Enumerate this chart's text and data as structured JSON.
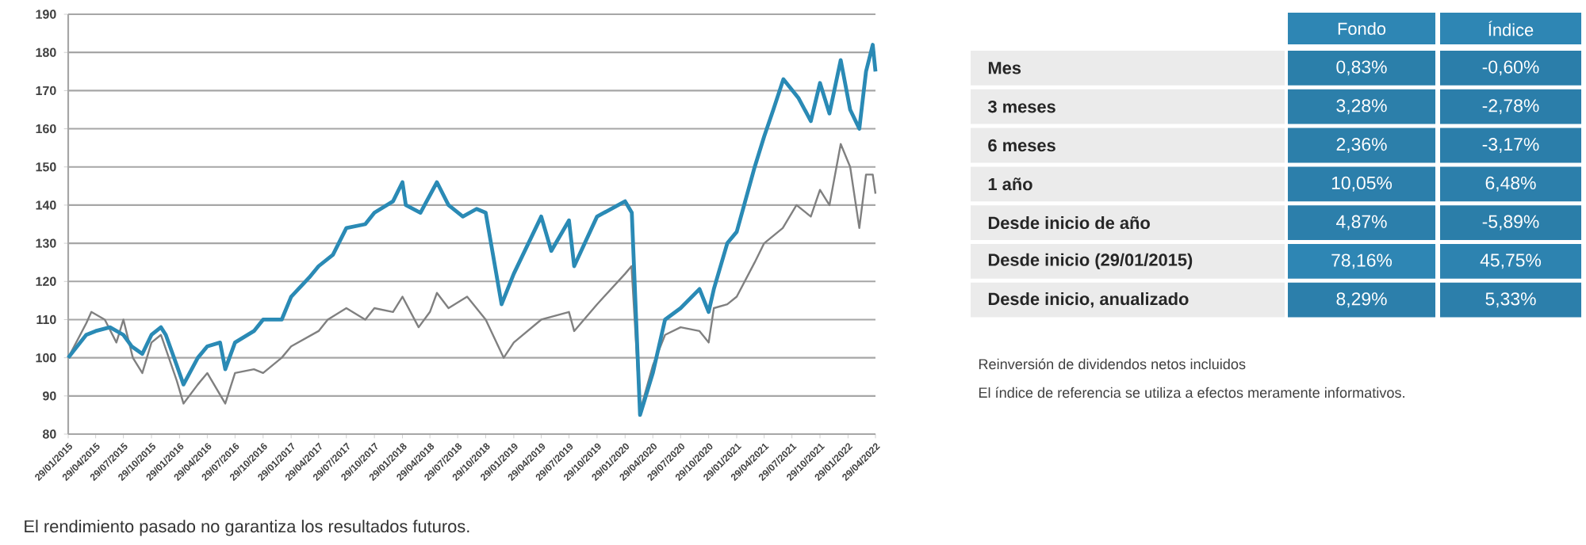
{
  "chart_data": [
    {
      "type": "line",
      "series": [
        {
          "color": "#808080",
          "x": [
            "2015-01-29",
            "2015-03-29",
            "2015-04-15",
            "2015-05-29",
            "2015-07-06",
            "2015-07-29",
            "2015-08-29",
            "2015-09-29",
            "2015-10-29",
            "2015-11-29",
            "2016-01-20",
            "2016-02-11",
            "2016-03-29",
            "2016-04-29",
            "2016-06-27",
            "2016-07-29",
            "2016-09-29",
            "2016-10-29",
            "2016-12-29",
            "2017-01-29",
            "2017-04-29",
            "2017-05-29",
            "2017-07-29",
            "2017-09-29",
            "2017-10-29",
            "2017-12-29",
            "2018-01-29",
            "2018-03-23",
            "2018-04-29",
            "2018-05-22",
            "2018-06-29",
            "2018-08-29",
            "2018-10-29",
            "2018-12-27",
            "2019-01-29",
            "2019-04-29",
            "2019-07-29",
            "2019-08-15",
            "2019-10-29",
            "2020-01-29",
            "2020-02-19",
            "2020-03-18",
            "2020-04-29",
            "2020-06-08",
            "2020-07-29",
            "2020-09-29",
            "2020-10-29",
            "2020-11-15",
            "2020-12-29",
            "2021-01-29",
            "2021-03-29",
            "2021-04-29",
            "2021-06-29",
            "2021-08-13",
            "2021-09-29",
            "2021-10-29",
            "2021-11-29",
            "2022-01-05",
            "2022-02-05",
            "2022-03-07",
            "2022-03-29",
            "2022-04-20",
            "2022-04-29"
          ],
          "values": [
            100,
            109,
            112,
            110,
            104,
            110,
            100,
            96,
            104,
            106,
            94,
            88,
            93,
            96,
            88,
            96,
            97,
            96,
            100,
            103,
            107,
            110,
            113,
            110,
            113,
            112,
            116,
            108,
            112,
            117,
            113,
            116,
            110,
            100,
            104,
            110,
            112,
            107,
            114,
            122,
            124,
            86,
            98,
            106,
            108,
            107,
            104,
            113,
            114,
            116,
            125,
            130,
            134,
            140,
            137,
            144,
            140,
            156,
            150,
            134,
            148,
            148,
            143
          ]
        },
        {
          "color": "#2a8ab5",
          "x": [
            "2015-01-29",
            "2015-03-29",
            "2015-04-29",
            "2015-06-15",
            "2015-07-29",
            "2015-08-25",
            "2015-09-29",
            "2015-10-29",
            "2015-11-29",
            "2015-12-15",
            "2016-01-20",
            "2016-02-11",
            "2016-03-29",
            "2016-04-29",
            "2016-06-10",
            "2016-06-27",
            "2016-07-29",
            "2016-09-29",
            "2016-10-29",
            "2016-12-29",
            "2017-01-29",
            "2017-03-29",
            "2017-04-29",
            "2017-06-15",
            "2017-07-29",
            "2017-09-29",
            "2017-10-29",
            "2017-12-29",
            "2018-01-29",
            "2018-02-09",
            "2018-03-29",
            "2018-05-22",
            "2018-06-29",
            "2018-08-15",
            "2018-09-29",
            "2018-10-29",
            "2018-12-20",
            "2019-01-29",
            "2019-04-29",
            "2019-06-01",
            "2019-07-29",
            "2019-08-15",
            "2019-10-29",
            "2020-01-29",
            "2020-02-20",
            "2020-03-18",
            "2020-04-29",
            "2020-06-08",
            "2020-07-29",
            "2020-09-29",
            "2020-10-29",
            "2020-11-15",
            "2020-12-29",
            "2021-01-29",
            "2021-03-29",
            "2021-04-29",
            "2021-05-29",
            "2021-07-01",
            "2021-08-20",
            "2021-09-29",
            "2021-10-29",
            "2021-11-29",
            "2022-01-05",
            "2022-02-05",
            "2022-03-07",
            "2022-03-29",
            "2022-04-20",
            "2022-04-29"
          ],
          "values": [
            100,
            106,
            107,
            108,
            106,
            103,
            101,
            106,
            108,
            106,
            98,
            93,
            100,
            103,
            104,
            97,
            104,
            107,
            110,
            110,
            116,
            121,
            124,
            127,
            134,
            135,
            138,
            141,
            146,
            140,
            138,
            146,
            140,
            137,
            139,
            138,
            114,
            122,
            137,
            128,
            136,
            124,
            137,
            141,
            138,
            85,
            96,
            110,
            113,
            118,
            112,
            118,
            130,
            133,
            150,
            158,
            165,
            173,
            168,
            162,
            172,
            164,
            178,
            165,
            160,
            175,
            182,
            175
          ]
        }
      ],
      "xlim": [
        "2015-01-29",
        "2022-04-29"
      ],
      "xticks": [
        {
          "value": "2015-01-29",
          "label": "29/01/2015"
        },
        {
          "value": "2015-04-29",
          "label": "29/04/2015"
        },
        {
          "value": "2015-07-29",
          "label": "29/07/2015"
        },
        {
          "value": "2015-10-29",
          "label": "29/10/2015"
        },
        {
          "value": "2016-01-29",
          "label": "29/01/2016"
        },
        {
          "value": "2016-04-29",
          "label": "29/04/2016"
        },
        {
          "value": "2016-07-29",
          "label": "29/07/2016"
        },
        {
          "value": "2016-10-29",
          "label": "29/10/2016"
        },
        {
          "value": "2017-01-29",
          "label": "29/01/2017"
        },
        {
          "value": "2017-04-29",
          "label": "29/04/2017"
        },
        {
          "value": "2017-07-29",
          "label": "29/07/2017"
        },
        {
          "value": "2017-10-29",
          "label": "29/10/2017"
        },
        {
          "value": "2018-01-29",
          "label": "29/01/2018"
        },
        {
          "value": "2018-04-29",
          "label": "29/04/2018"
        },
        {
          "value": "2018-07-29",
          "label": "29/07/2018"
        },
        {
          "value": "2018-10-29",
          "label": "29/10/2018"
        },
        {
          "value": "2019-01-29",
          "label": "29/01/2019"
        },
        {
          "value": "2019-04-29",
          "label": "29/04/2019"
        },
        {
          "value": "2019-07-29",
          "label": "29/07/2019"
        },
        {
          "value": "2019-10-29",
          "label": "29/10/2019"
        },
        {
          "value": "2020-01-29",
          "label": "29/01/2020"
        },
        {
          "value": "2020-04-29",
          "label": "29/04/2020"
        },
        {
          "value": "2020-07-29",
          "label": "29/07/2020"
        },
        {
          "value": "2020-10-29",
          "label": "29/10/2020"
        },
        {
          "value": "2021-01-29",
          "label": "29/01/2021"
        },
        {
          "value": "2021-04-29",
          "label": "29/04/2021"
        },
        {
          "value": "2021-07-29",
          "label": "29/07/2021"
        },
        {
          "value": "2021-10-29",
          "label": "29/10/2021"
        },
        {
          "value": "2022-01-29",
          "label": "29/01/2022"
        },
        {
          "value": "2022-04-29",
          "label": "29/04/2022"
        }
      ],
      "ylim": [
        80,
        190
      ],
      "yticks": [
        80,
        90,
        100,
        110,
        120,
        130,
        140,
        150,
        160,
        170,
        180,
        190
      ],
      "grid": "y",
      "annotations": [
        "El rendimiento pasado no garantiza los resultados futuros."
      ]
    },
    {
      "type": "heatmap",
      "color": "#2e86b4",
      "categories": [
        "Fondo",
        "Índice"
      ],
      "y_categories": [
        "Mes",
        "3 meses",
        "6 meses",
        "1 año",
        "Desde inicio de año",
        "Desde inicio (29/01/2015)",
        "Desde inicio, anualizado"
      ],
      "cells": [
        [
          0.83,
          -0.6
        ],
        [
          3.28,
          -2.78
        ],
        [
          2.36,
          -3.17
        ],
        [
          10.05,
          6.48
        ],
        [
          4.87,
          -5.89
        ],
        [
          78.16,
          45.75
        ],
        [
          8.29,
          5.33
        ]
      ],
      "cell_labels": [
        [
          "0,83%",
          "-0,60%"
        ],
        [
          "3,28%",
          "-2,78%"
        ],
        [
          "2,36%",
          "-3,17%"
        ],
        [
          "10,05%",
          "6,48%"
        ],
        [
          "4,87%",
          "-5,89%"
        ],
        [
          "78,16%",
          "45,75%"
        ],
        [
          "8,29%",
          "5,33%"
        ]
      ],
      "annotations": [
        "Reinversión de dividendos netos incluidos",
        "El índice de referencia se utiliza a efectos meramente informativos."
      ]
    }
  ]
}
